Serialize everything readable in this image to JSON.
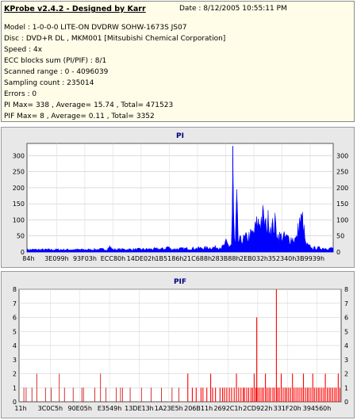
{
  "info": {
    "title": "KProbe v2.4.2 - Designed by Karr",
    "date": "Date : 8/12/2005 10:55:11 PM",
    "lines": [
      "Model : 1-0-0-0 LITE-ON DVDRW SOHW-1673S JS07",
      "Disc : DVD+R DL , MKM001 [Mitsubishi Chemical Corporation]",
      "Speed : 4x",
      "ECC blocks sum (PI/PIF) : 8/1",
      "Scanned range : 0 - 4096039",
      "Sampling count : 235014",
      "Errors : 0",
      "PI Max= 338 , Average= 15.74 , Total= 471523",
      "PIF Max= 8 , Average= 0.11 , Total= 3352"
    ]
  },
  "chart_data": [
    {
      "type": "area",
      "title": "PI",
      "ylim": [
        0,
        338
      ],
      "yticks": [
        0,
        50,
        100,
        150,
        200,
        250,
        300
      ],
      "x_tick_labels": [
        "84h",
        "3E099h",
        "93F03h",
        "ECC80h",
        "14DE02h",
        "1B5186h",
        "21C688h",
        "283B88h",
        "2EB032h",
        "352340h",
        "3B9939h"
      ],
      "series_color": "#0000ff",
      "envelope_pct": [
        [
          0,
          9
        ],
        [
          10,
          9
        ],
        [
          20,
          9
        ],
        [
          23,
          10
        ],
        [
          26,
          10
        ],
        [
          27,
          20
        ],
        [
          28,
          10
        ],
        [
          35,
          10
        ],
        [
          40,
          11
        ],
        [
          45,
          12
        ],
        [
          46,
          20
        ],
        [
          47,
          11
        ],
        [
          50,
          12
        ],
        [
          55,
          14
        ],
        [
          60,
          16
        ],
        [
          64,
          19
        ],
        [
          65,
          35
        ],
        [
          66,
          22
        ],
        [
          66.9,
          30
        ],
        [
          67.2,
          330
        ],
        [
          67.6,
          60
        ],
        [
          68,
          25
        ],
        [
          68.5,
          180
        ],
        [
          69,
          40
        ],
        [
          70,
          45
        ],
        [
          72,
          55
        ],
        [
          74,
          70
        ],
        [
          75,
          100
        ],
        [
          76,
          115
        ],
        [
          77,
          130
        ],
        [
          78,
          95
        ],
        [
          79,
          120
        ],
        [
          80,
          90
        ],
        [
          81,
          105
        ],
        [
          82,
          60
        ],
        [
          84,
          55
        ],
        [
          86,
          50
        ],
        [
          88,
          48
        ],
        [
          89,
          110
        ],
        [
          90,
          118
        ],
        [
          91,
          30
        ],
        [
          92,
          22
        ],
        [
          93,
          15
        ],
        [
          100,
          14
        ]
      ]
    },
    {
      "type": "bar",
      "title": "PIF",
      "ylim": [
        0,
        8
      ],
      "yticks": [
        0,
        1,
        2,
        3,
        4,
        5,
        6,
        7,
        8
      ],
      "x_tick_labels": [
        "11h",
        "3C0C5h",
        "90E05h",
        "E3549h",
        "13DE13h",
        "1A23E5h",
        "206B11h",
        "2692C1h",
        "2CD922h",
        "331F20h",
        "394560h"
      ],
      "series_color": "#ff0000",
      "spikes_pct": [
        [
          1.5,
          1
        ],
        [
          2.2,
          1
        ],
        [
          4.0,
          1
        ],
        [
          5.5,
          2
        ],
        [
          8.2,
          1
        ],
        [
          10.0,
          1
        ],
        [
          12.5,
          2
        ],
        [
          14.1,
          1
        ],
        [
          16.8,
          1
        ],
        [
          19.5,
          1
        ],
        [
          20.0,
          1
        ],
        [
          23.5,
          1
        ],
        [
          25.3,
          2
        ],
        [
          27.0,
          1
        ],
        [
          30.2,
          1
        ],
        [
          31.5,
          1
        ],
        [
          32.1,
          1
        ],
        [
          34.5,
          1
        ],
        [
          38.0,
          1
        ],
        [
          41.0,
          1
        ],
        [
          44.2,
          1
        ],
        [
          47.5,
          1
        ],
        [
          49.6,
          1
        ],
        [
          52.4,
          2
        ],
        [
          53.8,
          1
        ],
        [
          55.0,
          1
        ],
        [
          56.5,
          1
        ],
        [
          57.1,
          1
        ],
        [
          58.3,
          1
        ],
        [
          59.5,
          2
        ],
        [
          60.1,
          1
        ],
        [
          61.0,
          1
        ],
        [
          62.4,
          1
        ],
        [
          63.2,
          1
        ],
        [
          63.8,
          1
        ],
        [
          64.5,
          1
        ],
        [
          65.3,
          1
        ],
        [
          66.0,
          1
        ],
        [
          66.8,
          1
        ],
        [
          67.5,
          2
        ],
        [
          68.2,
          1
        ],
        [
          68.9,
          1
        ],
        [
          69.6,
          1
        ],
        [
          70.0,
          1
        ],
        [
          70.7,
          1
        ],
        [
          71.3,
          1
        ],
        [
          72.0,
          1
        ],
        [
          72.5,
          1
        ],
        [
          73.0,
          2
        ],
        [
          73.5,
          1
        ],
        [
          73.8,
          6
        ],
        [
          74.2,
          1
        ],
        [
          74.8,
          1
        ],
        [
          75.4,
          1
        ],
        [
          75.9,
          1
        ],
        [
          76.5,
          2
        ],
        [
          77.0,
          1
        ],
        [
          77.6,
          1
        ],
        [
          78.1,
          1
        ],
        [
          78.8,
          1
        ],
        [
          79.3,
          1
        ],
        [
          79.9,
          8
        ],
        [
          80.3,
          1
        ],
        [
          80.8,
          1
        ],
        [
          81.4,
          2
        ],
        [
          82.0,
          1
        ],
        [
          82.6,
          1
        ],
        [
          83.1,
          1
        ],
        [
          83.7,
          1
        ],
        [
          84.3,
          1
        ],
        [
          84.9,
          2
        ],
        [
          85.4,
          1
        ],
        [
          86.0,
          1
        ],
        [
          86.6,
          1
        ],
        [
          87.2,
          1
        ],
        [
          87.8,
          1
        ],
        [
          88.3,
          2
        ],
        [
          88.9,
          1
        ],
        [
          89.5,
          1
        ],
        [
          90.0,
          1
        ],
        [
          90.6,
          1
        ],
        [
          91.2,
          2
        ],
        [
          91.7,
          1
        ],
        [
          92.3,
          1
        ],
        [
          92.9,
          1
        ],
        [
          93.4,
          1
        ],
        [
          94.0,
          1
        ],
        [
          94.6,
          1
        ],
        [
          95.1,
          2
        ],
        [
          95.7,
          1
        ],
        [
          96.3,
          1
        ],
        [
          96.8,
          1
        ],
        [
          97.4,
          1
        ],
        [
          98.0,
          1
        ],
        [
          98.5,
          1
        ],
        [
          99.1,
          2
        ],
        [
          99.6,
          1
        ]
      ]
    }
  ]
}
